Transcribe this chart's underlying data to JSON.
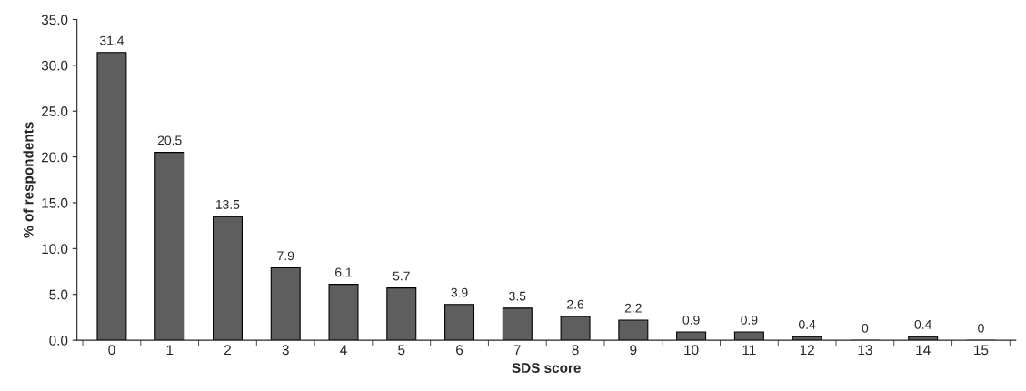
{
  "chart_data": {
    "type": "bar",
    "xlabel": "SDS score",
    "ylabel": "% of respondents",
    "categories": [
      "0",
      "1",
      "2",
      "3",
      "4",
      "5",
      "6",
      "7",
      "8",
      "9",
      "10",
      "11",
      "12",
      "13",
      "14",
      "15"
    ],
    "values": [
      31.4,
      20.5,
      13.5,
      7.9,
      6.1,
      5.7,
      3.9,
      3.5,
      2.6,
      2.2,
      0.9,
      0.9,
      0.4,
      0,
      0.4,
      0
    ],
    "color": "#5e5e5e",
    "ylim": [
      0,
      35
    ],
    "yticks": [
      {
        "value": 0,
        "label": "0.0"
      },
      {
        "value": 5,
        "label": "5.0"
      },
      {
        "value": 10,
        "label": "10.0"
      },
      {
        "value": 15,
        "label": "15.0"
      },
      {
        "value": 20,
        "label": "20.0"
      },
      {
        "value": 25,
        "label": "25.0"
      },
      {
        "value": 30,
        "label": "30.0"
      },
      {
        "value": 35,
        "label": "35.0"
      }
    ],
    "data_labels": true,
    "grid": false,
    "legend": false
  }
}
